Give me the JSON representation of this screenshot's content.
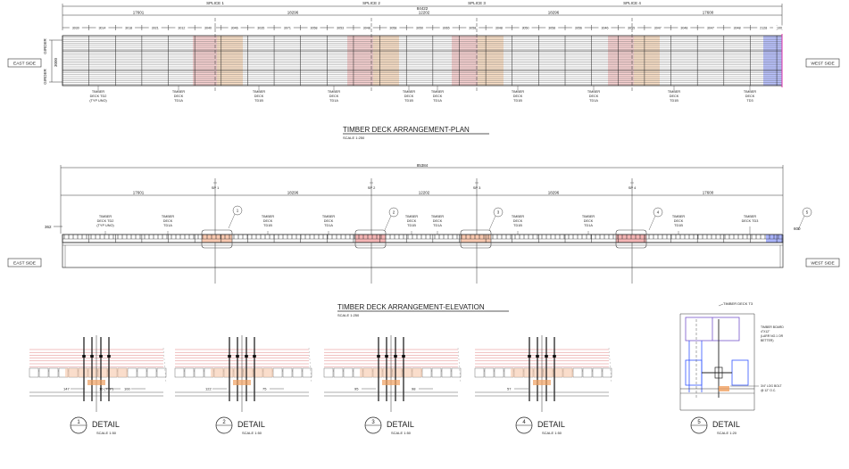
{
  "plan": {
    "top_dims": [
      "17601",
      "18296",
      "12202",
      "18296",
      "17600"
    ],
    "overall": "84422",
    "splices": [
      "SPLICE 1",
      "SPLICE 2",
      "SPLICE 3",
      "SPLICE 4"
    ],
    "spacing": [
      "3030",
      "3014",
      "3018",
      "3021",
      "3012",
      "3040",
      "3046",
      "3035",
      "3071",
      "3058",
      "3053",
      "3048",
      "3058",
      "3050",
      "3065",
      "3058",
      "3048",
      "3050",
      "3058",
      "3056",
      "3046",
      "3055",
      "3047",
      "3048",
      "3047",
      "3048",
      "2128",
      "100"
    ],
    "girder_top": "GIRDER",
    "girder_bottom": "GIRDER",
    "girder_dim": "3000",
    "east_side": "EAST SIDE",
    "west_side": "WEST SIDE",
    "labels": [
      [
        "TIMBER",
        "DECK TD2",
        "(TYP UNO)"
      ],
      [
        "TIMBER",
        "DECK",
        "TD1A"
      ],
      [
        "TIMBER",
        "DECK",
        "TD1B"
      ],
      [
        "TIMBER",
        "DECK",
        "TD1A"
      ],
      [
        "TIMBER",
        "DECK",
        "TD1B"
      ],
      [
        "TIMBER",
        "DECK",
        "TD1A"
      ],
      [
        "TIMBER",
        "DECK",
        "TD1B"
      ],
      [
        "TIMBER",
        "DECK",
        "TD1A"
      ],
      [
        "TIMBER",
        "DECK",
        "TD1B"
      ],
      [
        "TIMBER",
        "DECK",
        "TD3"
      ]
    ],
    "title": "TIMBER DECK ARRANGEMENT-PLAN",
    "scale": "SCALE 1:250"
  },
  "elevation": {
    "overall": "85384",
    "dims": [
      "17601",
      "18296",
      "12202",
      "18296",
      "17600"
    ],
    "splices": [
      "SP 1",
      "SP 2",
      "SP 3",
      "SP 4"
    ],
    "left_dim": "362",
    "right_dim": "600",
    "east_side": "EAST SIDE",
    "west_side": "WEST SIDE",
    "bubbles": [
      "1",
      "2",
      "3",
      "4",
      "5"
    ],
    "labels": [
      [
        "TIMBER",
        "DECK TD2",
        "(TYP UNO)"
      ],
      [
        "TIMBER",
        "DECK",
        "TD1A"
      ],
      [
        "TIMBER",
        "DECK",
        "TD1B"
      ],
      [
        "TIMBER",
        "DECK",
        "TD1A"
      ],
      [
        "TIMBER",
        "DECK",
        "TD1B"
      ],
      [
        "TIMBER",
        "DECK",
        "TD1A"
      ],
      [
        "TIMBER",
        "DECK",
        "TD1B"
      ],
      [
        "TIMBER",
        "DECK",
        "TD1A"
      ],
      [
        "TIMBER",
        "DECK",
        "TD1B"
      ],
      [
        "TIMBER",
        "DECK TD3"
      ]
    ],
    "title": "TIMBER DECK ARRANGEMENT-ELEVATION",
    "scale": "SCALE 1:250"
  },
  "details": [
    {
      "num": "1",
      "title": "DETAIL",
      "scale": "SCALE 1:50",
      "dims": [
        "147",
        "10 (TYP)",
        "100"
      ]
    },
    {
      "num": "2",
      "title": "DETAIL",
      "scale": "SCALE 1:50",
      "dims": [
        "122",
        "75"
      ]
    },
    {
      "num": "3",
      "title": "DETAIL",
      "scale": "SCALE 1:50",
      "dims": [
        "95",
        "98"
      ]
    },
    {
      "num": "4",
      "title": "DETAIL",
      "scale": "SCALE 1:50",
      "dims": [
        "57"
      ]
    },
    {
      "num": "5",
      "title": "DETAIL",
      "scale": "SCALE 1:20",
      "notes": [
        "TIMBER DECK T3",
        "TIMBER BOARD",
        "4\"X12\"",
        "(LARR NO.1 OR",
        "BETTER)",
        "3/4\" LOG BOLT",
        "@ 12\" O.C."
      ]
    }
  ],
  "colors": {
    "line": "#333333",
    "red": "#d9534f",
    "orange": "#f0a060",
    "blue": "#3355ff",
    "magenta": "#dd33aa"
  }
}
